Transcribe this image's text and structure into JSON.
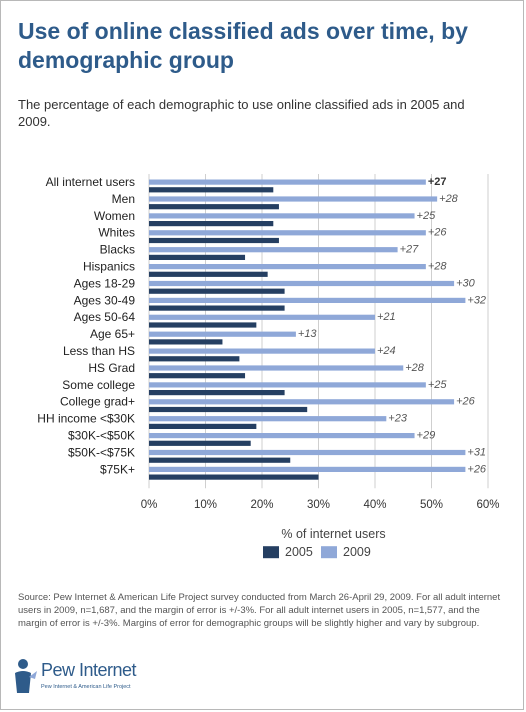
{
  "title": "Use of online classified ads over time, by demographic group",
  "subtitle": "The percentage of each demographic to use online classified ads in 2005 and 2009.",
  "source": "Source: Pew Internet & American Life Project survey conducted from March 26-April 29, 2009. For all adult internet users in 2009, n=1,687, and the margin of error is +/-3%. For all adult internet users in 2005, n=1,577, and the margin of error is +/-3%. Margins of error for demographic groups will be slightly higher and vary by subgroup.",
  "logo": {
    "word": "Pew Internet",
    "tagline": "Pew Internet & American Life Project"
  },
  "colors": {
    "series_2005": "#253f62",
    "series_2009": "#8fa8d8",
    "title": "#2e5b8a",
    "grid": "#cfcfcf"
  },
  "chart_data": {
    "type": "bar",
    "orientation": "horizontal",
    "categories": [
      "All internet users",
      "Men",
      "Women",
      "Whites",
      "Blacks",
      "Hispanics",
      "Ages 18-29",
      "Ages 30-49",
      "Ages 50-64",
      "Age 65+",
      "Less than HS",
      "HS Grad",
      "Some college",
      "College grad+",
      "HH income <$30K",
      "$30K-<$50K",
      "$50K-<$75K",
      "$75K+"
    ],
    "series": [
      {
        "name": "2005",
        "values": [
          22,
          23,
          22,
          23,
          17,
          21,
          24,
          24,
          19,
          13,
          16,
          17,
          24,
          28,
          19,
          18,
          25,
          30
        ]
      },
      {
        "name": "2009",
        "values": [
          49,
          51,
          47,
          49,
          44,
          49,
          54,
          56,
          40,
          26,
          40,
          45,
          49,
          54,
          42,
          47,
          56,
          56
        ]
      }
    ],
    "annotations": [
      "+27",
      "+28",
      "+25",
      "+26",
      "+27",
      "+28",
      "+30",
      "+32",
      "+21",
      "+13",
      "+24",
      "+28",
      "+25",
      "+26",
      "+23",
      "+29",
      "+31",
      "+26"
    ],
    "xlabel": "% of internet users",
    "xlim": [
      0,
      60
    ],
    "xticks": [
      "0%",
      "10%",
      "20%",
      "30%",
      "40%",
      "50%",
      "60%"
    ],
    "grid": true,
    "legend_position": "bottom"
  }
}
